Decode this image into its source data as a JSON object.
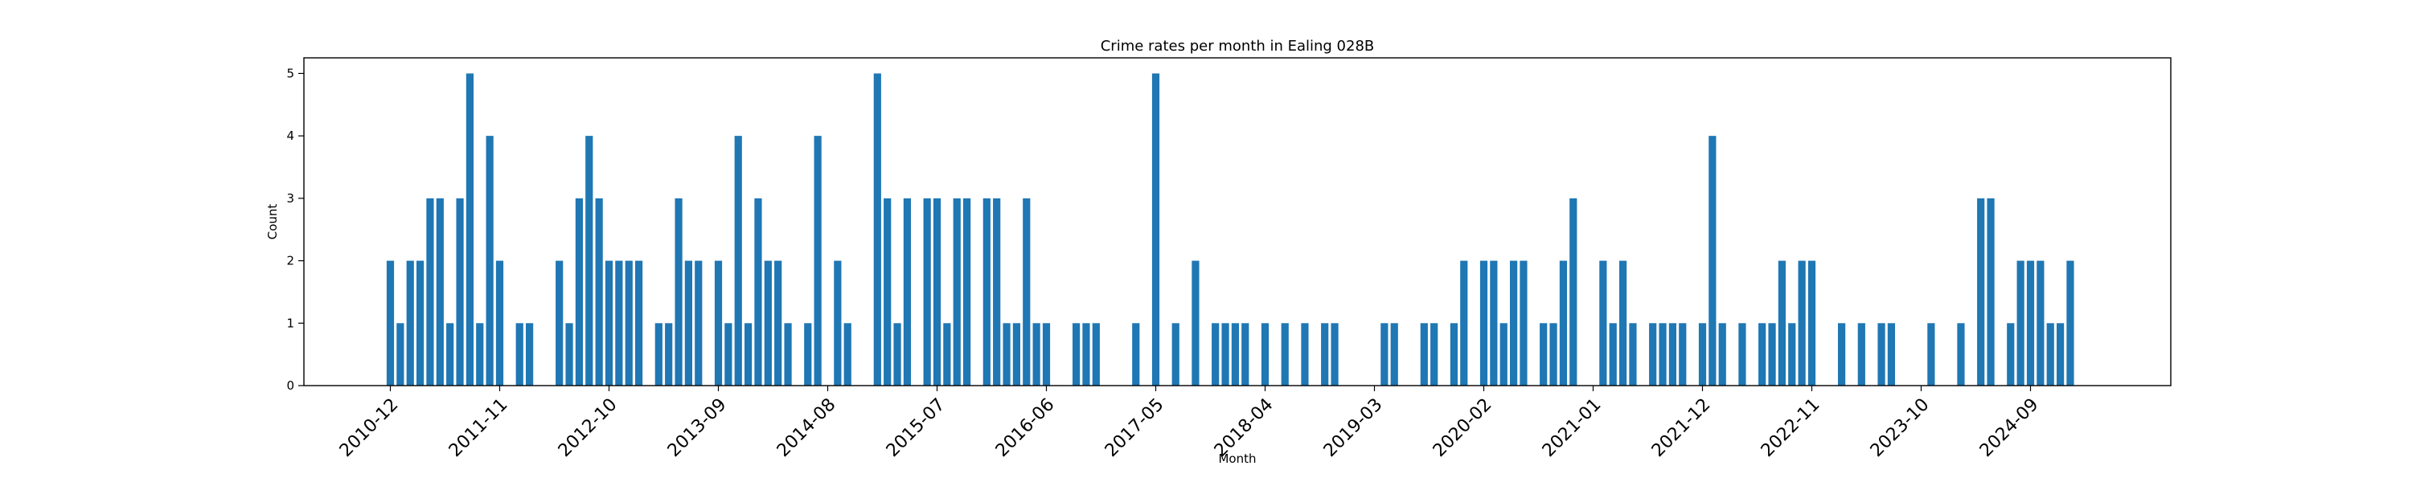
{
  "chart_data": {
    "type": "bar",
    "title": "Crime rates per month in Ealing 028B",
    "xlabel": "Month",
    "ylabel": "Count",
    "ylim": [
      0,
      5.25
    ],
    "yticks": [
      0,
      1,
      2,
      3,
      4,
      5
    ],
    "xticks": [
      "2010-12",
      "2011-11",
      "2012-10",
      "2013-09",
      "2014-08",
      "2015-07",
      "2016-06",
      "2017-05",
      "2018-04",
      "2019-03",
      "2020-02",
      "2021-01",
      "2021-12",
      "2022-11",
      "2023-10",
      "2024-09"
    ],
    "grid": false,
    "bar_color": "#1f77b4",
    "data": [
      {
        "x": "2010-12",
        "y": 2
      },
      {
        "x": "2011-01",
        "y": 1
      },
      {
        "x": "2011-02",
        "y": 2
      },
      {
        "x": "2011-03",
        "y": 2
      },
      {
        "x": "2011-04",
        "y": 3
      },
      {
        "x": "2011-05",
        "y": 3
      },
      {
        "x": "2011-06",
        "y": 1
      },
      {
        "x": "2011-07",
        "y": 3
      },
      {
        "x": "2011-08",
        "y": 5
      },
      {
        "x": "2011-09",
        "y": 1
      },
      {
        "x": "2011-10",
        "y": 4
      },
      {
        "x": "2011-11",
        "y": 2
      },
      {
        "x": "2012-01",
        "y": 1
      },
      {
        "x": "2012-02",
        "y": 1
      },
      {
        "x": "2012-05",
        "y": 2
      },
      {
        "x": "2012-06",
        "y": 1
      },
      {
        "x": "2012-07",
        "y": 3
      },
      {
        "x": "2012-08",
        "y": 4
      },
      {
        "x": "2012-09",
        "y": 3
      },
      {
        "x": "2012-10",
        "y": 2
      },
      {
        "x": "2012-11",
        "y": 2
      },
      {
        "x": "2012-12",
        "y": 2
      },
      {
        "x": "2013-01",
        "y": 2
      },
      {
        "x": "2013-03",
        "y": 1
      },
      {
        "x": "2013-04",
        "y": 1
      },
      {
        "x": "2013-05",
        "y": 3
      },
      {
        "x": "2013-06",
        "y": 2
      },
      {
        "x": "2013-07",
        "y": 2
      },
      {
        "x": "2013-09",
        "y": 2
      },
      {
        "x": "2013-10",
        "y": 1
      },
      {
        "x": "2013-11",
        "y": 4
      },
      {
        "x": "2013-12",
        "y": 1
      },
      {
        "x": "2014-01",
        "y": 3
      },
      {
        "x": "2014-02",
        "y": 2
      },
      {
        "x": "2014-03",
        "y": 2
      },
      {
        "x": "2014-04",
        "y": 1
      },
      {
        "x": "2014-06",
        "y": 1
      },
      {
        "x": "2014-07",
        "y": 4
      },
      {
        "x": "2014-09",
        "y": 2
      },
      {
        "x": "2014-10",
        "y": 1
      },
      {
        "x": "2015-01",
        "y": 5
      },
      {
        "x": "2015-02",
        "y": 3
      },
      {
        "x": "2015-03",
        "y": 1
      },
      {
        "x": "2015-04",
        "y": 3
      },
      {
        "x": "2015-06",
        "y": 3
      },
      {
        "x": "2015-07",
        "y": 3
      },
      {
        "x": "2015-08",
        "y": 1
      },
      {
        "x": "2015-09",
        "y": 3
      },
      {
        "x": "2015-10",
        "y": 3
      },
      {
        "x": "2015-12",
        "y": 3
      },
      {
        "x": "2016-01",
        "y": 3
      },
      {
        "x": "2016-02",
        "y": 1
      },
      {
        "x": "2016-03",
        "y": 1
      },
      {
        "x": "2016-04",
        "y": 3
      },
      {
        "x": "2016-05",
        "y": 1
      },
      {
        "x": "2016-06",
        "y": 1
      },
      {
        "x": "2016-09",
        "y": 1
      },
      {
        "x": "2016-10",
        "y": 1
      },
      {
        "x": "2016-11",
        "y": 1
      },
      {
        "x": "2017-03",
        "y": 1
      },
      {
        "x": "2017-05",
        "y": 5
      },
      {
        "x": "2017-07",
        "y": 1
      },
      {
        "x": "2017-09",
        "y": 2
      },
      {
        "x": "2017-11",
        "y": 1
      },
      {
        "x": "2017-12",
        "y": 1
      },
      {
        "x": "2018-01",
        "y": 1
      },
      {
        "x": "2018-02",
        "y": 1
      },
      {
        "x": "2018-04",
        "y": 1
      },
      {
        "x": "2018-06",
        "y": 1
      },
      {
        "x": "2018-08",
        "y": 1
      },
      {
        "x": "2018-10",
        "y": 1
      },
      {
        "x": "2018-11",
        "y": 1
      },
      {
        "x": "2019-04",
        "y": 1
      },
      {
        "x": "2019-05",
        "y": 1
      },
      {
        "x": "2019-08",
        "y": 1
      },
      {
        "x": "2019-09",
        "y": 1
      },
      {
        "x": "2019-11",
        "y": 1
      },
      {
        "x": "2019-12",
        "y": 2
      },
      {
        "x": "2020-02",
        "y": 2
      },
      {
        "x": "2020-03",
        "y": 2
      },
      {
        "x": "2020-04",
        "y": 1
      },
      {
        "x": "2020-05",
        "y": 2
      },
      {
        "x": "2020-06",
        "y": 2
      },
      {
        "x": "2020-08",
        "y": 1
      },
      {
        "x": "2020-09",
        "y": 1
      },
      {
        "x": "2020-10",
        "y": 2
      },
      {
        "x": "2020-11",
        "y": 3
      },
      {
        "x": "2021-02",
        "y": 2
      },
      {
        "x": "2021-03",
        "y": 1
      },
      {
        "x": "2021-04",
        "y": 2
      },
      {
        "x": "2021-05",
        "y": 1
      },
      {
        "x": "2021-07",
        "y": 1
      },
      {
        "x": "2021-08",
        "y": 1
      },
      {
        "x": "2021-09",
        "y": 1
      },
      {
        "x": "2021-10",
        "y": 1
      },
      {
        "x": "2021-12",
        "y": 1
      },
      {
        "x": "2022-01",
        "y": 4
      },
      {
        "x": "2022-02",
        "y": 1
      },
      {
        "x": "2022-04",
        "y": 1
      },
      {
        "x": "2022-06",
        "y": 1
      },
      {
        "x": "2022-07",
        "y": 1
      },
      {
        "x": "2022-08",
        "y": 2
      },
      {
        "x": "2022-09",
        "y": 1
      },
      {
        "x": "2022-10",
        "y": 2
      },
      {
        "x": "2022-11",
        "y": 2
      },
      {
        "x": "2023-02",
        "y": 1
      },
      {
        "x": "2023-04",
        "y": 1
      },
      {
        "x": "2023-06",
        "y": 1
      },
      {
        "x": "2023-07",
        "y": 1
      },
      {
        "x": "2023-11",
        "y": 1
      },
      {
        "x": "2024-02",
        "y": 1
      },
      {
        "x": "2024-04",
        "y": 3
      },
      {
        "x": "2024-05",
        "y": 3
      },
      {
        "x": "2024-07",
        "y": 1
      },
      {
        "x": "2024-08",
        "y": 2
      },
      {
        "x": "2024-09",
        "y": 2
      },
      {
        "x": "2024-10",
        "y": 2
      },
      {
        "x": "2024-11",
        "y": 1
      },
      {
        "x": "2024-12",
        "y": 1
      },
      {
        "x": "2025-01",
        "y": 2
      }
    ]
  }
}
